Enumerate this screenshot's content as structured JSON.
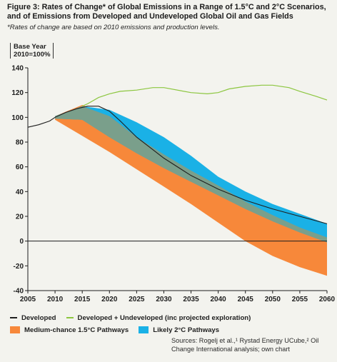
{
  "figure": {
    "title": "Figure 3: Rates of Change* of Global Emissions in a Range of 1.5°C and 2°C Scenarios, and of Emissions from Developed and Undeveloped Global Oil and Gas Fields",
    "note": "*Rates of change are based on 2010 emissions and production levels.",
    "unit_line1": "Base Year",
    "unit_line2": "2010=100%",
    "sources": "Sources: Rogelj et al.,¹ Rystad Energy UCube,² Oil Change International analysis; own chart"
  },
  "colors": {
    "developed": "#1e1e1e",
    "developed_undeveloped": "#8cc63f",
    "pathway_15": "#f7883a",
    "pathway_2": "#1ab1e6",
    "overlap": "#7a9f8b",
    "axis": "#1e1e1e"
  },
  "chart_data": {
    "type": "area",
    "xlabel": "",
    "ylabel": "",
    "xlim": [
      2005,
      2060
    ],
    "ylim": [
      -40,
      140
    ],
    "x_ticks": [
      "2005",
      "2010",
      "2015",
      "2020",
      "2025",
      "2030",
      "2035",
      "2040",
      "2045",
      "2050",
      "2055",
      "2060"
    ],
    "y_ticks": [
      "140",
      "120",
      "100",
      "80",
      "60",
      "40",
      "20",
      "0",
      "-20",
      "-40"
    ],
    "grid": false,
    "legend_position": "bottom",
    "series": [
      {
        "name": "Developed",
        "kind": "line",
        "x": [
          2005,
          2007,
          2009,
          2010,
          2012,
          2014,
          2016,
          2018,
          2020,
          2022,
          2025,
          2030,
          2035,
          2040,
          2045,
          2050,
          2055,
          2060
        ],
        "y": [
          92,
          94,
          97,
          100,
          104,
          107,
          109,
          109,
          105,
          97,
          84,
          67,
          53,
          42,
          33,
          26,
          20,
          14
        ]
      },
      {
        "name": "Developed + Undeveloped (inc projected exploration)",
        "kind": "line",
        "x": [
          2015,
          2016,
          2018,
          2020,
          2022,
          2025,
          2028,
          2030,
          2035,
          2038,
          2040,
          2042,
          2045,
          2048,
          2050,
          2053,
          2055,
          2058,
          2060
        ],
        "y": [
          109,
          111,
          116,
          119,
          121,
          122,
          124,
          124,
          120,
          119,
          120,
          123,
          125,
          126,
          126,
          124,
          121,
          117,
          114
        ]
      },
      {
        "name": "Medium-chance 1.5°C Pathways",
        "kind": "band",
        "x": [
          2010,
          2015,
          2020,
          2025,
          2030,
          2035,
          2040,
          2045,
          2050,
          2055,
          2060
        ],
        "y_low": [
          98,
          85,
          72,
          58,
          44,
          30,
          15,
          0,
          -12,
          -21,
          -28
        ],
        "y_high": [
          101,
          110,
          101,
          84,
          70,
          57,
          45,
          32,
          21,
          11,
          3
        ]
      },
      {
        "name": "Likely 2°C Pathways",
        "kind": "band",
        "x": [
          2010,
          2015,
          2020,
          2025,
          2030,
          2035,
          2040,
          2045,
          2050,
          2055,
          2060
        ],
        "y_low": [
          99,
          98,
          84,
          71,
          59,
          48,
          37,
          26,
          16,
          7,
          -1
        ],
        "y_high": [
          101,
          109,
          106,
          96,
          84,
          69,
          52,
          40,
          30,
          22,
          14
        ]
      }
    ]
  }
}
